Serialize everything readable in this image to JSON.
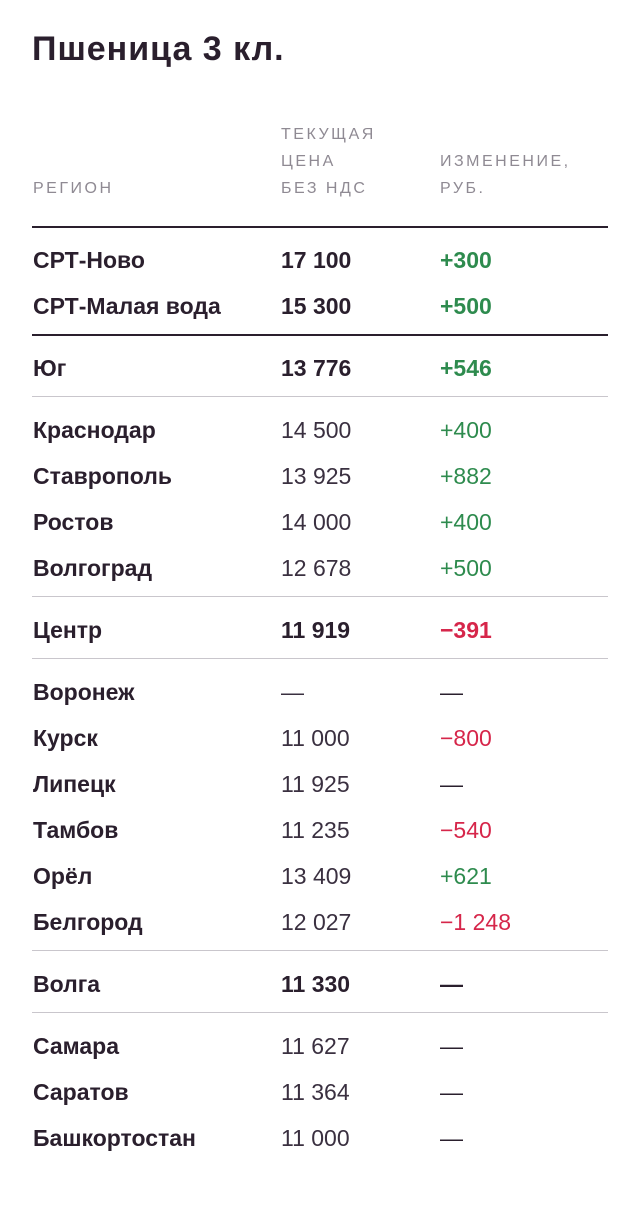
{
  "title": "Пшеница 3 кл.",
  "colors": {
    "positive": "#2e8b4e",
    "negative": "#d6264a",
    "text": "#2a1f2d",
    "muted": "#8f8a93"
  },
  "columns": {
    "region": "РЕГИОН",
    "price": "ТЕКУЩАЯ\nЦЕНА\nБЕЗ НДС",
    "change": "ИЗМЕНЕНИЕ,\nРУБ."
  },
  "rows": [
    {
      "region": "СРТ-Ново",
      "price": "17 100",
      "change": "+300",
      "trend": "pos",
      "bold": true
    },
    {
      "region": "СРТ-Малая вода",
      "price": "15 300",
      "change": "+500",
      "trend": "pos",
      "bold": true
    },
    {
      "region": "Юг",
      "price": "13 776",
      "change": "+546",
      "trend": "pos",
      "bold": true
    },
    {
      "region": "Краснодар",
      "price": "14 500",
      "change": "+400",
      "trend": "pos",
      "bold": false
    },
    {
      "region": "Ставрополь",
      "price": "13 925",
      "change": "+882",
      "trend": "pos",
      "bold": false
    },
    {
      "region": "Ростов",
      "price": "14 000",
      "change": "+400",
      "trend": "pos",
      "bold": false
    },
    {
      "region": "Волгоград",
      "price": "12 678",
      "change": "+500",
      "trend": "pos",
      "bold": false
    },
    {
      "region": "Центр",
      "price": "11 919",
      "change": "−391",
      "trend": "neg",
      "bold": true
    },
    {
      "region": "Воронеж",
      "price": "—",
      "change": "—",
      "trend": "dash",
      "bold": false
    },
    {
      "region": "Курск",
      "price": "11 000",
      "change": "−800",
      "trend": "neg",
      "bold": false
    },
    {
      "region": "Липецк",
      "price": "11 925",
      "change": "—",
      "trend": "dash",
      "bold": false
    },
    {
      "region": "Тамбов",
      "price": "11 235",
      "change": "−540",
      "trend": "neg",
      "bold": false
    },
    {
      "region": "Орёл",
      "price": "13 409",
      "change": "+621",
      "trend": "pos",
      "bold": false
    },
    {
      "region": "Белгород",
      "price": "12 027",
      "change": "−1 248",
      "trend": "neg",
      "bold": false
    },
    {
      "region": "Волга",
      "price": "11 330",
      "change": "—",
      "trend": "dash",
      "bold": true
    },
    {
      "region": "Самара",
      "price": "11 627",
      "change": "—",
      "trend": "dash",
      "bold": false
    },
    {
      "region": "Саратов",
      "price": "11 364",
      "change": "—",
      "trend": "dash",
      "bold": false
    },
    {
      "region": "Башкортостан",
      "price": "11 000",
      "change": "—",
      "trend": "dash",
      "bold": false
    }
  ]
}
